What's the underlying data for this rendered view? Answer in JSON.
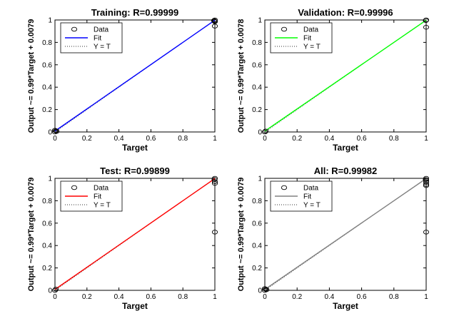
{
  "figure": {
    "background": "#ffffff"
  },
  "chart_data": [
    {
      "type": "scatter",
      "title": "Training: R=0.99999",
      "xlabel": "Target",
      "ylabel": "Output ~= 0.99*Target + 0.0079",
      "xlim": [
        0,
        1
      ],
      "ylim": [
        0,
        1
      ],
      "xticks": [
        "0",
        "0.2",
        "0.4",
        "0.6",
        "0.8",
        "1"
      ],
      "yticks": [
        "0",
        "0.2",
        "0.4",
        "0.6",
        "0.8",
        "1"
      ],
      "fit": {
        "slope": 0.99,
        "intercept": 0.0079,
        "color": "#0000ff"
      },
      "legend": {
        "position": "top-left",
        "entries": [
          "Data",
          "Fit",
          "Y = T"
        ]
      },
      "points": [
        [
          0,
          0
        ],
        [
          0.005,
          0.01
        ],
        [
          0.01,
          0.005
        ],
        [
          0,
          0.015
        ],
        [
          1,
          1
        ],
        [
          0.998,
          0.99
        ],
        [
          1,
          0.985
        ],
        [
          0.995,
          0.995
        ],
        [
          1,
          0.945
        ]
      ]
    },
    {
      "type": "scatter",
      "title": "Validation: R=0.99996",
      "xlabel": "Target",
      "ylabel": "Output ~= 0.99*Target + 0.0078",
      "xlim": [
        0,
        1
      ],
      "ylim": [
        0,
        1
      ],
      "xticks": [
        "0",
        "0.2",
        "0.4",
        "0.6",
        "0.8",
        "1"
      ],
      "yticks": [
        "0",
        "0.2",
        "0.4",
        "0.6",
        "0.8",
        "1"
      ],
      "fit": {
        "slope": 0.99,
        "intercept": 0.0078,
        "color": "#00ff00"
      },
      "legend": {
        "position": "top-left",
        "entries": [
          "Data",
          "Fit",
          "Y = T"
        ]
      },
      "points": [
        [
          0,
          0
        ],
        [
          0.005,
          0.008
        ],
        [
          1,
          1
        ],
        [
          0.998,
          0.995
        ],
        [
          1,
          0.935
        ]
      ]
    },
    {
      "type": "scatter",
      "title": "Test: R=0.99899",
      "xlabel": "Target",
      "ylabel": "Output ~= 0.99*Target + 0.0079",
      "xlim": [
        0,
        1
      ],
      "ylim": [
        0,
        1
      ],
      "xticks": [
        "0",
        "0.2",
        "0.4",
        "0.6",
        "0.8",
        "1"
      ],
      "yticks": [
        "0",
        "0.2",
        "0.4",
        "0.6",
        "0.8",
        "1"
      ],
      "fit": {
        "slope": 0.99,
        "intercept": 0.0079,
        "color": "#ff0000"
      },
      "legend": {
        "position": "top-left",
        "entries": [
          "Data",
          "Fit",
          "Y = T"
        ]
      },
      "points": [
        [
          0,
          0
        ],
        [
          0.005,
          0.01
        ],
        [
          1,
          1
        ],
        [
          0.998,
          0.99
        ],
        [
          1,
          0.97
        ],
        [
          1,
          0.955
        ],
        [
          1,
          0.52
        ]
      ]
    },
    {
      "type": "scatter",
      "title": "All: R=0.99982",
      "xlabel": "Target",
      "ylabel": "Output ~= 0.99*Target + 0.0079",
      "xlim": [
        0,
        1
      ],
      "ylim": [
        0,
        1
      ],
      "xticks": [
        "0",
        "0.2",
        "0.4",
        "0.6",
        "0.8",
        "1"
      ],
      "yticks": [
        "0",
        "0.2",
        "0.4",
        "0.6",
        "0.8",
        "1"
      ],
      "fit": {
        "slope": 0.99,
        "intercept": 0.0079,
        "color": "#808080"
      },
      "legend": {
        "position": "top-left",
        "entries": [
          "Data",
          "Fit",
          "Y = T"
        ]
      },
      "points": [
        [
          0,
          0
        ],
        [
          0.005,
          0.01
        ],
        [
          0.01,
          0.005
        ],
        [
          0,
          0.015
        ],
        [
          1,
          1
        ],
        [
          0.998,
          0.99
        ],
        [
          1,
          0.98
        ],
        [
          1,
          0.965
        ],
        [
          1,
          0.945
        ],
        [
          1,
          0.935
        ],
        [
          1,
          0.52
        ]
      ]
    }
  ]
}
